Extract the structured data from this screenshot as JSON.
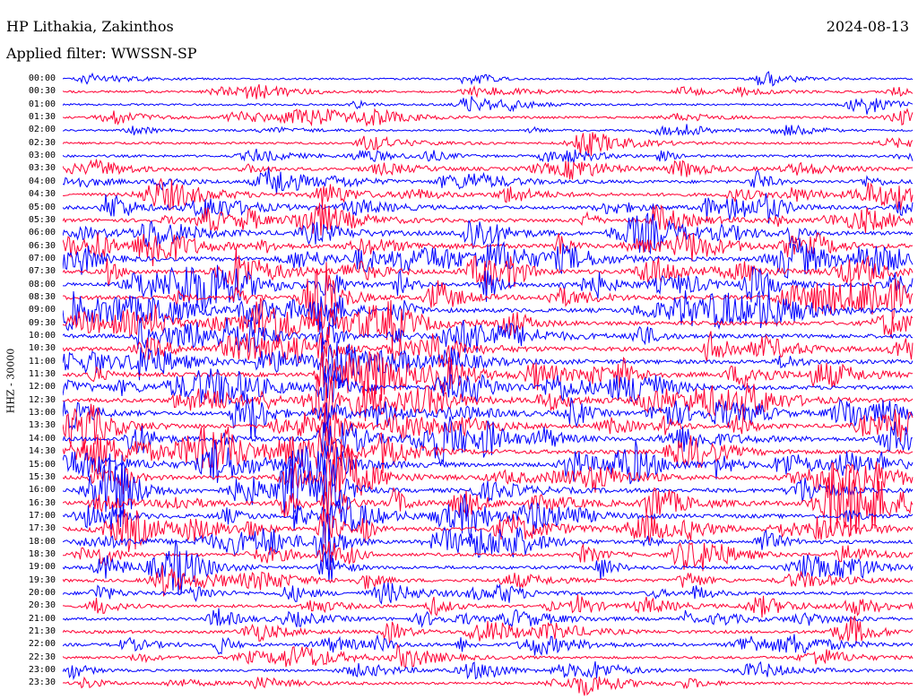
{
  "header": {
    "station": "HP Lithakia, Zakinthos",
    "date": "2024-08-13",
    "filter": "Applied filter: WWSSN-SP"
  },
  "axis": {
    "ylabel": "HHZ - 30000"
  },
  "colors": {
    "trace_a": "#0000ff",
    "trace_b": "#ff0033",
    "background": "#ffffff"
  },
  "chart_data": {
    "type": "line",
    "title": "HP Lithakia, Zakinthos",
    "subtitle": "Applied filter: WWSSN-SP",
    "ylabel": "HHZ - 30000",
    "xlabel": "",
    "grid": false,
    "traces_per_row_minutes": 30,
    "row_labels": [
      "00:00",
      "00:30",
      "01:00",
      "01:30",
      "02:00",
      "02:30",
      "03:00",
      "03:30",
      "04:00",
      "04:30",
      "05:00",
      "05:30",
      "06:00",
      "06:30",
      "07:00",
      "07:30",
      "08:00",
      "08:30",
      "09:00",
      "09:30",
      "10:00",
      "10:30",
      "11:00",
      "11:30",
      "12:00",
      "12:30",
      "13:00",
      "13:30",
      "14:00",
      "14:30",
      "15:00",
      "15:30",
      "16:00",
      "16:30",
      "17:00",
      "17:30",
      "18:00",
      "18:30",
      "19:00",
      "19:30",
      "20:00",
      "20:30",
      "21:00",
      "21:30",
      "22:00",
      "22:30",
      "23:00",
      "23:30"
    ],
    "row_activity": [
      0.25,
      0.35,
      0.3,
      0.4,
      0.3,
      0.35,
      0.45,
      0.55,
      0.65,
      0.75,
      0.8,
      0.85,
      0.9,
      0.95,
      1.0,
      1.0,
      1.0,
      1.0,
      1.0,
      1.0,
      1.0,
      1.0,
      1.0,
      1.0,
      1.0,
      1.0,
      1.0,
      1.0,
      1.0,
      1.0,
      1.0,
      1.0,
      1.0,
      1.0,
      1.0,
      0.9,
      0.8,
      0.7,
      0.7,
      0.65,
      0.7,
      0.6,
      0.55,
      0.6,
      0.6,
      0.5,
      0.45,
      0.45
    ],
    "row_colors": [
      "blue",
      "red"
    ]
  }
}
